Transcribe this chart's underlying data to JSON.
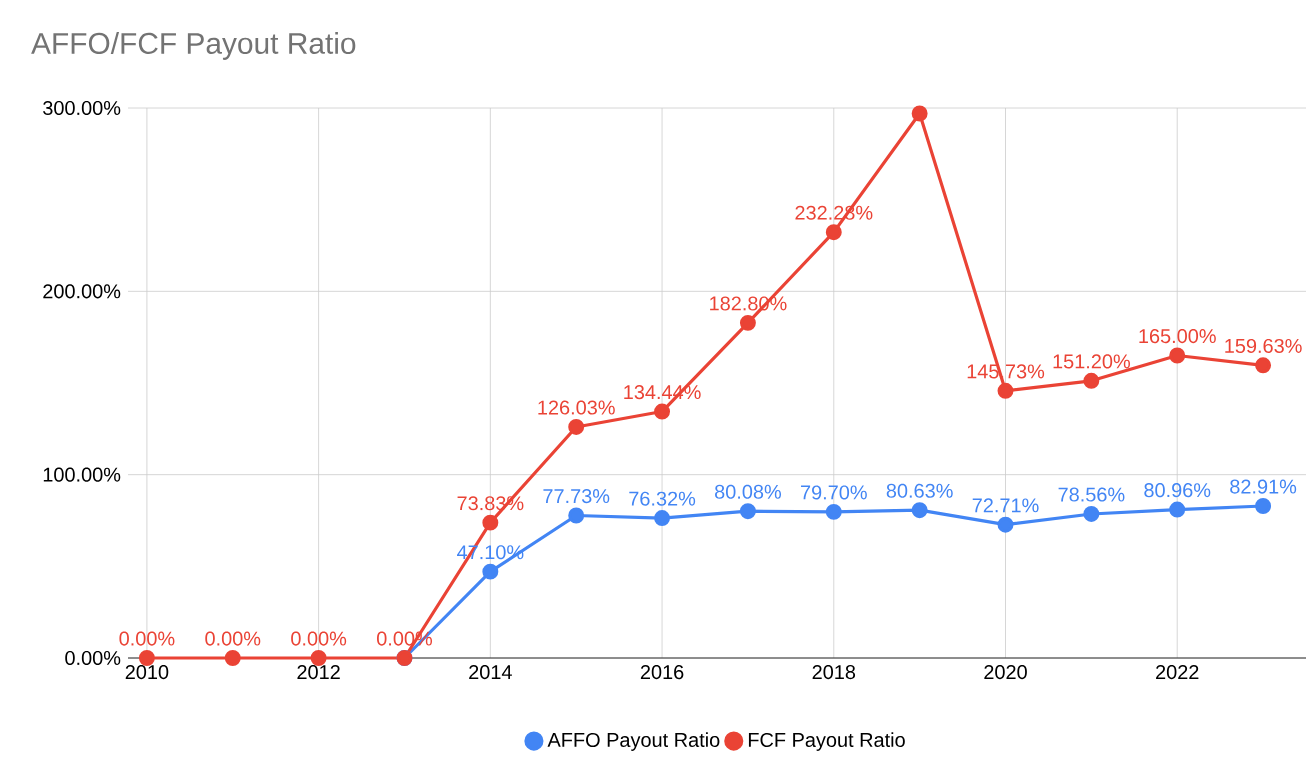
{
  "chart_data": {
    "type": "line",
    "title": "AFFO/FCF Payout Ratio",
    "x": [
      2010,
      2011,
      2012,
      2013,
      2014,
      2015,
      2016,
      2017,
      2018,
      2019,
      2020,
      2021,
      2022,
      2023
    ],
    "series": [
      {
        "name": "AFFO Payout Ratio",
        "color": "#4285f4",
        "values": [
          null,
          null,
          null,
          0,
          47.1,
          77.73,
          76.32,
          80.08,
          79.7,
          80.63,
          72.71,
          78.56,
          80.96,
          82.91
        ],
        "value_labels": [
          null,
          null,
          null,
          null,
          "47.10%",
          "77.73%",
          "76.32%",
          "80.08%",
          "79.70%",
          "80.63%",
          "72.71%",
          "78.56%",
          "80.96%",
          "82.91%"
        ]
      },
      {
        "name": "FCF Payout Ratio",
        "color": "#ea4335",
        "values": [
          0,
          0,
          0,
          0,
          73.83,
          126.03,
          134.44,
          182.8,
          232.28,
          297,
          145.73,
          151.2,
          165.0,
          159.63
        ],
        "value_labels": [
          "0.00%",
          "0.00%",
          "0.00%",
          "0.00%",
          "73.83%",
          "126.03%",
          "134.44%",
          "182.80%",
          "232.28%",
          null,
          "145.73%",
          "151.20%",
          "165.00%",
          "159.63%"
        ]
      }
    ],
    "xlim": [
      2009.78,
      2023.5
    ],
    "xticks": [
      2010,
      2012,
      2014,
      2016,
      2018,
      2020,
      2022
    ],
    "ylim": [
      0,
      300
    ],
    "yticks": [
      {
        "value": 0,
        "label": "0.00%"
      },
      {
        "value": 100,
        "label": "100.00%"
      },
      {
        "value": 200,
        "label": "200.00%"
      },
      {
        "value": 300,
        "label": "300.00%"
      }
    ],
    "grid": true,
    "legend": "bottom",
    "marker": "circle",
    "line_style": "solid"
  }
}
